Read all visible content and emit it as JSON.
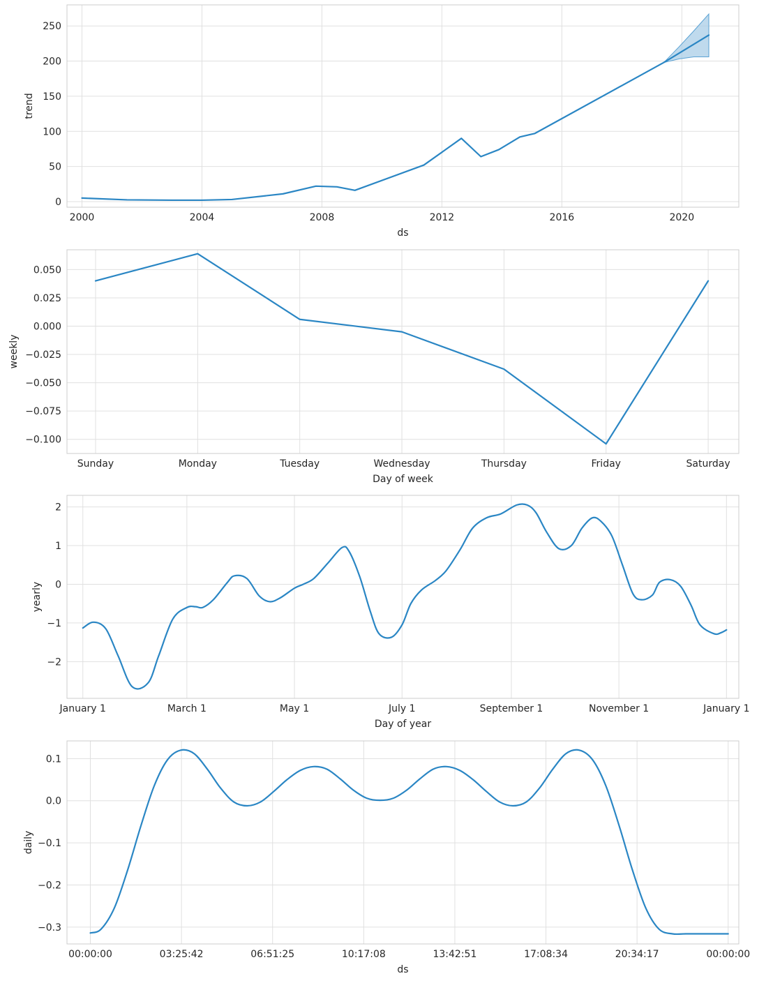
{
  "chart_data": [
    {
      "type": "line",
      "xlabel": "ds",
      "ylabel": "trend",
      "x_kind": "year",
      "xlim": [
        1999.5,
        2021.9
      ],
      "ylim": [
        -8,
        280
      ],
      "x_ticks": [
        2000,
        2004,
        2008,
        2012,
        2016,
        2020
      ],
      "x_tick_labels": [
        "2000",
        "2004",
        "2008",
        "2012",
        "2016",
        "2020"
      ],
      "y_ticks": [
        0,
        50,
        100,
        150,
        200,
        250
      ],
      "y_tick_labels": [
        "0",
        "50",
        "100",
        "150",
        "200",
        "250"
      ],
      "grid": true,
      "series": [
        {
          "x": [
            2000,
            2001.5,
            2003,
            2004,
            2005,
            2006.7,
            2007.8,
            2008.5,
            2009.1,
            2011.4,
            2012.65,
            2013.3,
            2013.9,
            2014.6,
            2015.1,
            2019.4,
            2020.9
          ],
          "y": [
            5,
            2.5,
            2,
            2,
            3,
            11,
            22,
            21,
            16,
            52,
            90,
            64,
            74,
            92,
            97,
            198,
            237
          ]
        }
      ],
      "uncertainty_band": {
        "x": [
          2019.4,
          2019.9,
          2020.4,
          2020.9
        ],
        "lower": [
          198,
          203,
          206,
          206
        ],
        "upper": [
          198,
          220,
          243,
          267
        ]
      }
    },
    {
      "type": "line",
      "xlabel": "Day of week",
      "ylabel": "weekly",
      "xlim": [
        -0.28,
        6.3
      ],
      "ylim": [
        -0.1125,
        0.0675
      ],
      "categories": [
        "Sunday",
        "Monday",
        "Tuesday",
        "Wednesday",
        "Thursday",
        "Friday",
        "Saturday"
      ],
      "y_ticks": [
        0.05,
        0.025,
        0.0,
        -0.025,
        -0.05,
        -0.075,
        -0.1
      ],
      "y_tick_labels": [
        "0.050",
        "0.025",
        "0.000",
        "−0.025",
        "−0.050",
        "−0.075",
        "−0.100"
      ],
      "grid": true,
      "series": [
        {
          "values": [
            0.04,
            0.064,
            0.006,
            -0.005,
            -0.038,
            -0.104,
            0.04
          ]
        }
      ]
    },
    {
      "type": "line",
      "xlabel": "Day of year",
      "ylabel": "yearly",
      "xlim": [
        -9,
        372
      ],
      "ylim": [
        -2.95,
        2.3
      ],
      "x_ticks": [
        0,
        59,
        120,
        181,
        243,
        304,
        365
      ],
      "x_tick_labels": [
        "January 1",
        "March 1",
        "May 1",
        "July 1",
        "September 1",
        "November 1",
        "January 1"
      ],
      "y_ticks": [
        2,
        1,
        0,
        -1,
        -2
      ],
      "y_tick_labels": [
        "2",
        "1",
        "0",
        "−1",
        "−2"
      ],
      "grid": true,
      "series": [
        {
          "x": [
            0,
            6,
            13,
            20,
            28,
            37,
            43,
            51,
            59,
            64,
            68,
            74,
            82,
            86,
            93,
            100,
            106,
            112,
            120,
            125,
            131,
            139,
            147,
            151,
            157,
            163,
            168,
            175,
            181,
            186,
            192,
            200,
            206,
            214,
            221,
            229,
            237,
            246,
            252,
            257,
            263,
            270,
            277,
            283,
            289,
            294,
            300,
            306,
            312,
            317,
            323,
            327,
            333,
            339,
            345,
            350,
            358,
            362,
            365
          ],
          "y": [
            -1.13,
            -0.98,
            -1.15,
            -1.85,
            -2.65,
            -2.55,
            -1.85,
            -0.9,
            -0.6,
            -0.58,
            -0.6,
            -0.4,
            0.05,
            0.22,
            0.15,
            -0.3,
            -0.45,
            -0.35,
            -0.1,
            0.0,
            0.15,
            0.55,
            0.95,
            0.85,
            0.2,
            -0.7,
            -1.28,
            -1.37,
            -1.05,
            -0.5,
            -0.15,
            0.1,
            0.35,
            0.9,
            1.45,
            1.72,
            1.82,
            2.05,
            2.05,
            1.85,
            1.35,
            0.92,
            1.0,
            1.45,
            1.72,
            1.62,
            1.25,
            0.5,
            -0.25,
            -0.4,
            -0.28,
            0.05,
            0.12,
            -0.05,
            -0.55,
            -1.05,
            -1.28,
            -1.25,
            -1.18
          ]
        }
      ]
    },
    {
      "type": "line",
      "xlabel": "ds",
      "ylabel": "daily",
      "xlim": [
        -0.88,
        24.4
      ],
      "ylim": [
        -0.34,
        0.142
      ],
      "x_ticks": [
        0,
        3.4283,
        6.8569,
        10.2856,
        13.7142,
        17.1428,
        20.5714,
        24
      ],
      "x_tick_labels": [
        "00:00:00",
        "03:25:42",
        "06:51:25",
        "10:17:08",
        "13:42:51",
        "17:08:34",
        "20:34:17",
        "00:00:00"
      ],
      "y_ticks": [
        0.1,
        0.0,
        -0.1,
        -0.2,
        -0.3
      ],
      "y_tick_labels": [
        "0.1",
        "0.0",
        "−0.1",
        "−0.2",
        "−0.3"
      ],
      "grid": true,
      "series": [
        {
          "x": [
            0,
            0.4,
            0.9,
            1.4,
            1.9,
            2.4,
            2.9,
            3.4,
            3.9,
            4.4,
            4.9,
            5.4,
            5.9,
            6.4,
            6.9,
            7.4,
            7.9,
            8.4,
            8.9,
            9.4,
            9.9,
            10.4,
            10.9,
            11.4,
            11.9,
            12.4,
            12.9,
            13.4,
            13.9,
            14.4,
            14.9,
            15.4,
            15.9,
            16.4,
            16.9,
            17.4,
            17.9,
            18.4,
            18.9,
            19.4,
            19.9,
            20.4,
            20.9,
            21.4,
            21.9,
            22.4,
            22.9,
            23.4,
            24
          ],
          "y": [
            -0.314,
            -0.305,
            -0.255,
            -0.165,
            -0.06,
            0.035,
            0.097,
            0.12,
            0.112,
            0.075,
            0.03,
            -0.003,
            -0.012,
            -0.003,
            0.022,
            0.05,
            0.072,
            0.081,
            0.075,
            0.052,
            0.025,
            0.006,
            0.001,
            0.006,
            0.025,
            0.052,
            0.075,
            0.081,
            0.072,
            0.05,
            0.022,
            -0.003,
            -0.012,
            -0.003,
            0.03,
            0.075,
            0.112,
            0.12,
            0.097,
            0.035,
            -0.06,
            -0.165,
            -0.255,
            -0.305,
            -0.316,
            -0.316,
            -0.316,
            -0.316,
            -0.316
          ]
        }
      ]
    }
  ],
  "colors": {
    "line": "#2a86c4",
    "band": "#a9cde7",
    "grid": "#e0e0e0",
    "frame": "#cccccc",
    "text": "#262626"
  }
}
